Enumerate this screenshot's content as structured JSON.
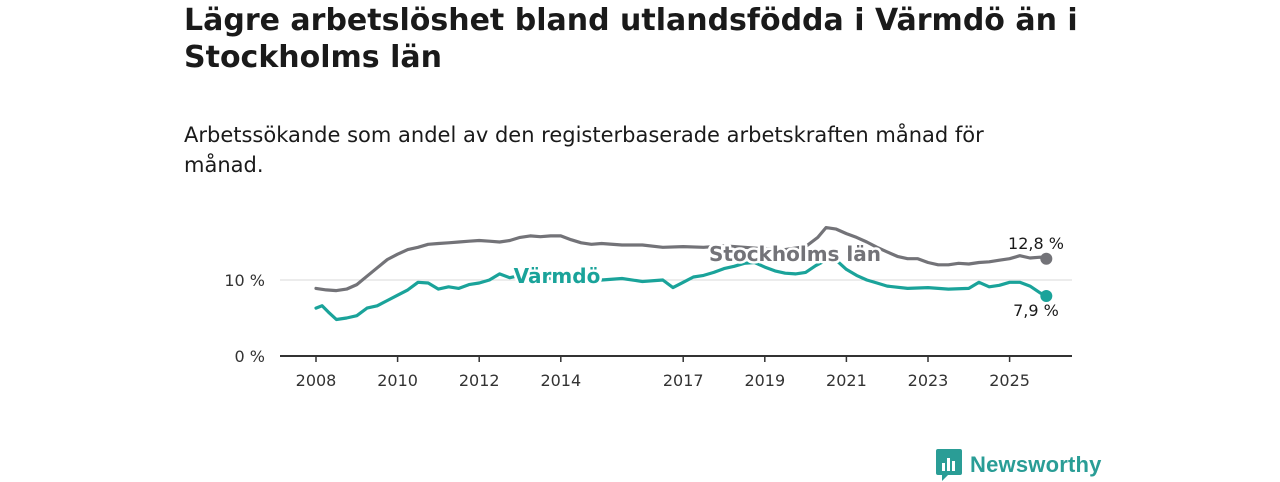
{
  "title": "Lägre arbetslöshet bland utlandsfödda i Värmdö än i Stockholms län",
  "subtitle": "Arbetssökande som andel av den registerbaserade arbetskraften månad för månad.",
  "brand": {
    "name": "Newsworthy",
    "color": "#2a9d96"
  },
  "colors": {
    "stockholm": "#737378",
    "varmdo": "#1aa39a"
  },
  "chart_data": {
    "type": "line",
    "title": "Lägre arbetslöshet bland utlandsfödda i Värmdö än i Stockholms län",
    "xlabel": "",
    "ylabel": "",
    "xlim": [
      2008,
      2026.3
    ],
    "ylim": [
      0,
      19
    ],
    "x_ticks": [
      2008,
      2010,
      2012,
      2014,
      2017,
      2019,
      2021,
      2023,
      2025
    ],
    "x_tick_labels": [
      "2008",
      "2010",
      "2012",
      "2014",
      "2017",
      "2019",
      "2021",
      "2023",
      "2025"
    ],
    "y_ticks": [
      0,
      10
    ],
    "y_tick_labels": [
      "0 %",
      "10 %"
    ],
    "series": [
      {
        "name": "Stockholms län",
        "label": "Stockholms län",
        "end_label": "12,8 %",
        "points": [
          [
            2008.0,
            8.9
          ],
          [
            2008.25,
            8.7
          ],
          [
            2008.5,
            8.6
          ],
          [
            2008.75,
            8.8
          ],
          [
            2009.0,
            9.4
          ],
          [
            2009.25,
            10.5
          ],
          [
            2009.5,
            11.6
          ],
          [
            2009.75,
            12.7
          ],
          [
            2010.0,
            13.4
          ],
          [
            2010.25,
            14.0
          ],
          [
            2010.5,
            14.3
          ],
          [
            2010.75,
            14.7
          ],
          [
            2011.0,
            14.8
          ],
          [
            2011.25,
            14.9
          ],
          [
            2011.5,
            15.0
          ],
          [
            2011.75,
            15.1
          ],
          [
            2012.0,
            15.2
          ],
          [
            2012.25,
            15.1
          ],
          [
            2012.5,
            15.0
          ],
          [
            2012.75,
            15.2
          ],
          [
            2013.0,
            15.6
          ],
          [
            2013.25,
            15.8
          ],
          [
            2013.5,
            15.7
          ],
          [
            2013.75,
            15.8
          ],
          [
            2014.0,
            15.8
          ],
          [
            2014.25,
            15.3
          ],
          [
            2014.5,
            14.9
          ],
          [
            2014.75,
            14.7
          ],
          [
            2015.0,
            14.8
          ],
          [
            2015.5,
            14.6
          ],
          [
            2016.0,
            14.6
          ],
          [
            2016.5,
            14.3
          ],
          [
            2017.0,
            14.4
          ],
          [
            2017.5,
            14.3
          ],
          [
            2018.0,
            14.5
          ],
          [
            2018.5,
            14.3
          ],
          [
            2019.0,
            14.1
          ],
          [
            2019.5,
            14.0
          ],
          [
            2020.0,
            14.4
          ],
          [
            2020.3,
            15.6
          ],
          [
            2020.5,
            16.9
          ],
          [
            2020.75,
            16.7
          ],
          [
            2021.0,
            16.1
          ],
          [
            2021.25,
            15.6
          ],
          [
            2021.5,
            15.0
          ],
          [
            2021.75,
            14.3
          ],
          [
            2022.0,
            13.7
          ],
          [
            2022.25,
            13.1
          ],
          [
            2022.5,
            12.8
          ],
          [
            2022.75,
            12.8
          ],
          [
            2023.0,
            12.3
          ],
          [
            2023.25,
            12.0
          ],
          [
            2023.5,
            12.0
          ],
          [
            2023.75,
            12.2
          ],
          [
            2024.0,
            12.1
          ],
          [
            2024.25,
            12.3
          ],
          [
            2024.5,
            12.4
          ],
          [
            2024.75,
            12.6
          ],
          [
            2025.0,
            12.8
          ],
          [
            2025.25,
            13.2
          ],
          [
            2025.5,
            12.9
          ],
          [
            2025.75,
            13.0
          ],
          [
            2025.9,
            12.8
          ]
        ]
      },
      {
        "name": "Värmdö",
        "label": "Värmdö",
        "end_label": "7,9 %",
        "points": [
          [
            2008.0,
            6.3
          ],
          [
            2008.15,
            6.6
          ],
          [
            2008.3,
            5.8
          ],
          [
            2008.5,
            4.8
          ],
          [
            2008.75,
            5.0
          ],
          [
            2009.0,
            5.3
          ],
          [
            2009.25,
            6.3
          ],
          [
            2009.5,
            6.6
          ],
          [
            2009.75,
            7.3
          ],
          [
            2010.0,
            8.0
          ],
          [
            2010.25,
            8.7
          ],
          [
            2010.5,
            9.7
          ],
          [
            2010.75,
            9.6
          ],
          [
            2011.0,
            8.8
          ],
          [
            2011.25,
            9.1
          ],
          [
            2011.5,
            8.9
          ],
          [
            2011.75,
            9.4
          ],
          [
            2012.0,
            9.6
          ],
          [
            2012.25,
            10.0
          ],
          [
            2012.5,
            10.8
          ],
          [
            2012.75,
            10.3
          ],
          [
            2013.0,
            10.6
          ],
          [
            2013.5,
            10.6
          ],
          [
            2014.0,
            9.8
          ],
          [
            2014.5,
            10.1
          ],
          [
            2015.0,
            10.0
          ],
          [
            2015.5,
            10.2
          ],
          [
            2016.0,
            9.8
          ],
          [
            2016.5,
            10.0
          ],
          [
            2016.75,
            9.0
          ],
          [
            2017.0,
            9.7
          ],
          [
            2017.25,
            10.4
          ],
          [
            2017.5,
            10.6
          ],
          [
            2017.75,
            11.0
          ],
          [
            2018.0,
            11.5
          ],
          [
            2018.25,
            11.8
          ],
          [
            2018.5,
            12.2
          ],
          [
            2018.75,
            12.3
          ],
          [
            2019.0,
            11.7
          ],
          [
            2019.25,
            11.2
          ],
          [
            2019.5,
            10.9
          ],
          [
            2019.75,
            10.8
          ],
          [
            2020.0,
            11.0
          ],
          [
            2020.25,
            11.9
          ],
          [
            2020.5,
            12.6
          ],
          [
            2020.75,
            12.6
          ],
          [
            2021.0,
            11.4
          ],
          [
            2021.25,
            10.6
          ],
          [
            2021.5,
            10.0
          ],
          [
            2021.75,
            9.6
          ],
          [
            2022.0,
            9.2
          ],
          [
            2022.5,
            8.9
          ],
          [
            2023.0,
            9.0
          ],
          [
            2023.5,
            8.8
          ],
          [
            2024.0,
            8.9
          ],
          [
            2024.25,
            9.7
          ],
          [
            2024.5,
            9.1
          ],
          [
            2024.75,
            9.3
          ],
          [
            2025.0,
            9.7
          ],
          [
            2025.25,
            9.7
          ],
          [
            2025.5,
            9.2
          ],
          [
            2025.75,
            8.3
          ],
          [
            2025.9,
            7.9
          ]
        ]
      }
    ]
  }
}
